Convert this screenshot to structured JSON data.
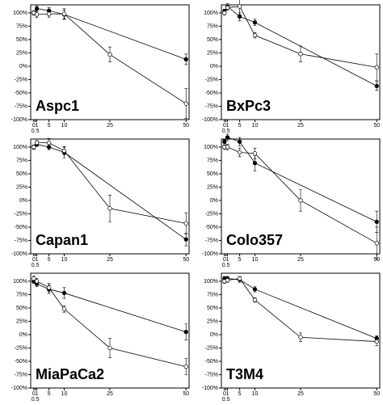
{
  "chart_data": [
    {
      "type": "line",
      "title": "Aspc1",
      "xlim": [
        -1,
        51
      ],
      "ylim": [
        -100,
        115
      ],
      "xticks": [
        0,
        {
          "value": 0.5,
          "label": "0.5"
        },
        1,
        5,
        10,
        25,
        50
      ],
      "yticks": [
        {
          "value": -100,
          "label": "-100%"
        },
        {
          "value": -75,
          "label": "-75%"
        },
        {
          "value": -50,
          "label": "-50%"
        },
        {
          "value": -25,
          "label": "-25%"
        },
        {
          "value": 0,
          "label": "0%"
        },
        {
          "value": 25,
          "label": "25%"
        },
        {
          "value": 50,
          "label": "50%"
        },
        {
          "value": 75,
          "label": "75%"
        },
        {
          "value": 100,
          "label": "100%"
        }
      ],
      "series": [
        {
          "color": "#000000",
          "marker": "filled",
          "x": [
            0,
            1,
            5,
            10,
            50
          ],
          "values": [
            100,
            108,
            104,
            97,
            13
          ],
          "errors": [
            4,
            5,
            6,
            8,
            10
          ]
        },
        {
          "color": "#000000",
          "marker": "open",
          "x": [
            0,
            1,
            5,
            10,
            25,
            50
          ],
          "values": [
            100,
            97,
            98,
            98,
            22,
            -70
          ],
          "errors": [
            4,
            6,
            6,
            10,
            14,
            28
          ]
        }
      ]
    },
    {
      "type": "line",
      "title": "BxPc3",
      "xlim": [
        -1,
        51
      ],
      "ylim": [
        -100,
        115
      ],
      "xticks": [
        0,
        {
          "value": 0.5,
          "label": "0.5"
        },
        1,
        5,
        10,
        25,
        50
      ],
      "yticks": [
        {
          "value": -100,
          "label": "-100%"
        },
        {
          "value": -75,
          "label": "-75%"
        },
        {
          "value": -50,
          "label": "-50%"
        },
        {
          "value": -25,
          "label": "-25%"
        },
        {
          "value": 0,
          "label": "0%"
        },
        {
          "value": 25,
          "label": "25%"
        },
        {
          "value": 50,
          "label": "50%"
        },
        {
          "value": 75,
          "label": "75%"
        },
        {
          "value": 100,
          "label": "100%"
        }
      ],
      "series": [
        {
          "color": "#000000",
          "marker": "filled",
          "x": [
            0,
            1,
            5,
            10,
            50
          ],
          "values": [
            103,
            112,
            93,
            82,
            -37
          ],
          "errors": [
            4,
            5,
            8,
            6,
            8
          ]
        },
        {
          "color": "#000000",
          "marker": "open",
          "x": [
            0,
            1,
            5,
            10,
            25,
            50
          ],
          "values": [
            100,
            110,
            112,
            58,
            23,
            -2
          ],
          "errors": [
            4,
            5,
            15,
            5,
            15,
            25
          ]
        }
      ]
    },
    {
      "type": "line",
      "title": "Capan1",
      "xlim": [
        -1,
        51
      ],
      "ylim": [
        -100,
        115
      ],
      "xticks": [
        0,
        {
          "value": 0.5,
          "label": "0.5"
        },
        1,
        5,
        10,
        25,
        50
      ],
      "yticks": [
        {
          "value": -100,
          "label": "-100%"
        },
        {
          "value": -75,
          "label": "-75%"
        },
        {
          "value": -50,
          "label": "-50%"
        },
        {
          "value": -25,
          "label": "-25%"
        },
        {
          "value": 0,
          "label": "0%"
        },
        {
          "value": 25,
          "label": "25%"
        },
        {
          "value": 50,
          "label": "50%"
        },
        {
          "value": 75,
          "label": "75%"
        },
        {
          "value": 100,
          "label": "100%"
        }
      ],
      "series": [
        {
          "color": "#000000",
          "marker": "filled",
          "x": [
            0,
            1,
            5,
            10,
            50
          ],
          "values": [
            100,
            105,
            100,
            90,
            -73
          ],
          "errors": [
            4,
            4,
            5,
            10,
            12
          ]
        },
        {
          "color": "#000000",
          "marker": "open",
          "x": [
            0,
            1,
            5,
            10,
            25,
            50
          ],
          "values": [
            100,
            108,
            108,
            93,
            -15,
            -43
          ],
          "errors": [
            4,
            4,
            8,
            8,
            25,
            20
          ]
        }
      ]
    },
    {
      "type": "line",
      "title": "Colo357",
      "xlim": [
        -1,
        51
      ],
      "ylim": [
        -100,
        115
      ],
      "xticks": [
        0,
        {
          "value": 0.5,
          "label": "0.5"
        },
        1,
        5,
        10,
        25,
        50
      ],
      "yticks": [
        {
          "value": -100,
          "label": "-100%"
        },
        {
          "value": -75,
          "label": "-75%"
        },
        {
          "value": -50,
          "label": "-50%"
        },
        {
          "value": -25,
          "label": "-25%"
        },
        {
          "value": 0,
          "label": "0%"
        },
        {
          "value": 25,
          "label": "25%"
        },
        {
          "value": 50,
          "label": "50%"
        },
        {
          "value": 75,
          "label": "75%"
        },
        {
          "value": 100,
          "label": "100%"
        }
      ],
      "series": [
        {
          "color": "#000000",
          "marker": "filled",
          "x": [
            0,
            1,
            5,
            10,
            50
          ],
          "values": [
            110,
            118,
            110,
            70,
            -40
          ],
          "errors": [
            4,
            6,
            8,
            15,
            20
          ]
        },
        {
          "color": "#000000",
          "marker": "open",
          "x": [
            0,
            1,
            5,
            10,
            25,
            50
          ],
          "values": [
            100,
            100,
            90,
            88,
            0,
            -80
          ],
          "errors": [
            4,
            5,
            8,
            10,
            20,
            30
          ]
        }
      ]
    },
    {
      "type": "line",
      "title": "MiaPaCa2",
      "xlim": [
        -1,
        51
      ],
      "ylim": [
        -100,
        115
      ],
      "xticks": [
        0,
        {
          "value": 0.5,
          "label": "0.5"
        },
        1,
        5,
        10,
        25,
        50
      ],
      "yticks": [
        {
          "value": -100,
          "label": "-100%"
        },
        {
          "value": -75,
          "label": "-75%"
        },
        {
          "value": -50,
          "label": "-50%"
        },
        {
          "value": -25,
          "label": "-25%"
        },
        {
          "value": 0,
          "label": "0%"
        },
        {
          "value": 25,
          "label": "25%"
        },
        {
          "value": 50,
          "label": "50%"
        },
        {
          "value": 75,
          "label": "75%"
        },
        {
          "value": 100,
          "label": "100%"
        }
      ],
      "series": [
        {
          "color": "#000000",
          "marker": "filled",
          "x": [
            0,
            1,
            5,
            10,
            50
          ],
          "values": [
            100,
            95,
            85,
            78,
            5
          ],
          "errors": [
            4,
            5,
            8,
            10,
            15
          ]
        },
        {
          "color": "#000000",
          "marker": "open",
          "x": [
            0,
            1,
            5,
            10,
            25,
            50
          ],
          "values": [
            105,
            100,
            88,
            48,
            -25,
            -60
          ],
          "errors": [
            5,
            5,
            8,
            6,
            18,
            15
          ]
        }
      ]
    },
    {
      "type": "line",
      "title": "T3M4",
      "xlim": [
        -1,
        51
      ],
      "ylim": [
        -100,
        115
      ],
      "xticks": [
        0,
        {
          "value": 0.5,
          "label": "0.5"
        },
        1,
        5,
        10,
        25,
        50
      ],
      "yticks": [
        {
          "value": -100,
          "label": "-100%"
        },
        {
          "value": -75,
          "label": "-75%"
        },
        {
          "value": -50,
          "label": "-50%"
        },
        {
          "value": -25,
          "label": "-25%"
        },
        {
          "value": 0,
          "label": "0%"
        },
        {
          "value": 25,
          "label": "25%"
        },
        {
          "value": 50,
          "label": "50%"
        },
        {
          "value": 75,
          "label": "75%"
        },
        {
          "value": 100,
          "label": "100%"
        }
      ],
      "series": [
        {
          "color": "#000000",
          "marker": "filled",
          "x": [
            0,
            1,
            5,
            10,
            50
          ],
          "values": [
            105,
            105,
            103,
            85,
            -7
          ],
          "errors": [
            4,
            4,
            5,
            5,
            5
          ]
        },
        {
          "color": "#000000",
          "marker": "open",
          "x": [
            0,
            1,
            5,
            10,
            25,
            50
          ],
          "values": [
            100,
            102,
            105,
            65,
            -5,
            -13
          ],
          "errors": [
            4,
            4,
            4,
            4,
            8,
            8
          ]
        }
      ]
    }
  ]
}
